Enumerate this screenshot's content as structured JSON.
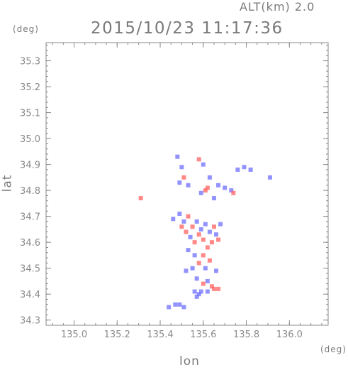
{
  "header": {
    "alt_label": "ALT(km) 2.0",
    "title": "2015/10/23 11:17:36"
  },
  "chart_data": {
    "type": "scatter",
    "title": "2015/10/23 11:17:36",
    "subtitle": "ALT(km) 2.0",
    "xlabel": "lon",
    "ylabel": "lat",
    "x_unit": "(deg)",
    "y_unit": "(deg)",
    "xlim": [
      134.87,
      136.18
    ],
    "ylim": [
      34.28,
      35.37
    ],
    "xticks": [
      "135.0",
      "135.2",
      "135.4",
      "135.6",
      "135.8",
      "136.0"
    ],
    "xtick_values": [
      135.0,
      135.2,
      135.4,
      135.6,
      135.8,
      136.0
    ],
    "yticks": [
      "34.3",
      "34.4",
      "34.5",
      "34.6",
      "34.7",
      "34.8",
      "34.9",
      "35.0",
      "35.1",
      "35.2",
      "35.3"
    ],
    "ytick_values": [
      34.3,
      34.4,
      34.5,
      34.6,
      34.7,
      34.8,
      34.9,
      35.0,
      35.1,
      35.2,
      35.3
    ],
    "grid": false,
    "colors": {
      "positive": "#ff6060",
      "negative": "#6f6fff",
      "axis": "#8a8a8a"
    },
    "points": [
      {
        "lon": 135.48,
        "lat": 34.93,
        "c": "negative"
      },
      {
        "lon": 135.5,
        "lat": 34.89,
        "c": "negative"
      },
      {
        "lon": 135.51,
        "lat": 34.85,
        "c": "positive"
      },
      {
        "lon": 135.53,
        "lat": 34.82,
        "c": "negative"
      },
      {
        "lon": 135.49,
        "lat": 34.83,
        "c": "negative"
      },
      {
        "lon": 135.58,
        "lat": 34.92,
        "c": "positive"
      },
      {
        "lon": 135.6,
        "lat": 34.9,
        "c": "negative"
      },
      {
        "lon": 135.63,
        "lat": 34.85,
        "c": "negative"
      },
      {
        "lon": 135.61,
        "lat": 34.8,
        "c": "positive"
      },
      {
        "lon": 135.62,
        "lat": 34.81,
        "c": "positive"
      },
      {
        "lon": 135.59,
        "lat": 34.79,
        "c": "negative"
      },
      {
        "lon": 135.65,
        "lat": 34.77,
        "c": "negative"
      },
      {
        "lon": 135.67,
        "lat": 34.82,
        "c": "negative"
      },
      {
        "lon": 135.7,
        "lat": 34.81,
        "c": "negative"
      },
      {
        "lon": 135.73,
        "lat": 34.8,
        "c": "negative"
      },
      {
        "lon": 135.74,
        "lat": 34.79,
        "c": "positive"
      },
      {
        "lon": 135.76,
        "lat": 34.88,
        "c": "negative"
      },
      {
        "lon": 135.79,
        "lat": 34.89,
        "c": "negative"
      },
      {
        "lon": 135.82,
        "lat": 34.88,
        "c": "negative"
      },
      {
        "lon": 135.91,
        "lat": 34.85,
        "c": "negative"
      },
      {
        "lon": 135.31,
        "lat": 34.77,
        "c": "positive"
      },
      {
        "lon": 135.46,
        "lat": 34.69,
        "c": "negative"
      },
      {
        "lon": 135.49,
        "lat": 34.71,
        "c": "negative"
      },
      {
        "lon": 135.5,
        "lat": 34.66,
        "c": "positive"
      },
      {
        "lon": 135.51,
        "lat": 34.68,
        "c": "negative"
      },
      {
        "lon": 135.52,
        "lat": 34.64,
        "c": "positive"
      },
      {
        "lon": 135.53,
        "lat": 34.7,
        "c": "positive"
      },
      {
        "lon": 135.54,
        "lat": 34.62,
        "c": "negative"
      },
      {
        "lon": 135.55,
        "lat": 34.66,
        "c": "positive"
      },
      {
        "lon": 135.56,
        "lat": 34.6,
        "c": "positive"
      },
      {
        "lon": 135.57,
        "lat": 34.68,
        "c": "negative"
      },
      {
        "lon": 135.58,
        "lat": 34.63,
        "c": "positive"
      },
      {
        "lon": 135.59,
        "lat": 34.65,
        "c": "negative"
      },
      {
        "lon": 135.6,
        "lat": 34.61,
        "c": "positive"
      },
      {
        "lon": 135.61,
        "lat": 34.67,
        "c": "negative"
      },
      {
        "lon": 135.62,
        "lat": 34.58,
        "c": "positive"
      },
      {
        "lon": 135.63,
        "lat": 34.64,
        "c": "negative"
      },
      {
        "lon": 135.64,
        "lat": 34.6,
        "c": "positive"
      },
      {
        "lon": 135.65,
        "lat": 34.66,
        "c": "positive"
      },
      {
        "lon": 135.66,
        "lat": 34.63,
        "c": "negative"
      },
      {
        "lon": 135.67,
        "lat": 34.61,
        "c": "positive"
      },
      {
        "lon": 135.68,
        "lat": 34.67,
        "c": "negative"
      },
      {
        "lon": 135.53,
        "lat": 34.57,
        "c": "negative"
      },
      {
        "lon": 135.56,
        "lat": 34.55,
        "c": "negative"
      },
      {
        "lon": 135.58,
        "lat": 34.52,
        "c": "positive"
      },
      {
        "lon": 135.6,
        "lat": 34.55,
        "c": "positive"
      },
      {
        "lon": 135.61,
        "lat": 34.5,
        "c": "negative"
      },
      {
        "lon": 135.63,
        "lat": 34.53,
        "c": "positive"
      },
      {
        "lon": 135.55,
        "lat": 34.5,
        "c": "negative"
      },
      {
        "lon": 135.52,
        "lat": 34.49,
        "c": "negative"
      },
      {
        "lon": 135.66,
        "lat": 34.49,
        "c": "negative"
      },
      {
        "lon": 135.57,
        "lat": 34.46,
        "c": "negative"
      },
      {
        "lon": 135.6,
        "lat": 34.44,
        "c": "positive"
      },
      {
        "lon": 135.62,
        "lat": 34.45,
        "c": "negative"
      },
      {
        "lon": 135.64,
        "lat": 34.43,
        "c": "positive"
      },
      {
        "lon": 135.59,
        "lat": 34.41,
        "c": "negative"
      },
      {
        "lon": 135.56,
        "lat": 34.41,
        "c": "negative"
      },
      {
        "lon": 135.58,
        "lat": 34.4,
        "c": "negative"
      },
      {
        "lon": 135.62,
        "lat": 34.41,
        "c": "negative"
      },
      {
        "lon": 135.65,
        "lat": 34.42,
        "c": "positive"
      },
      {
        "lon": 135.67,
        "lat": 34.42,
        "c": "positive"
      },
      {
        "lon": 135.57,
        "lat": 34.39,
        "c": "negative"
      },
      {
        "lon": 135.44,
        "lat": 34.35,
        "c": "negative"
      },
      {
        "lon": 135.47,
        "lat": 34.36,
        "c": "negative"
      },
      {
        "lon": 135.49,
        "lat": 34.36,
        "c": "negative"
      },
      {
        "lon": 135.51,
        "lat": 34.35,
        "c": "negative"
      }
    ]
  }
}
